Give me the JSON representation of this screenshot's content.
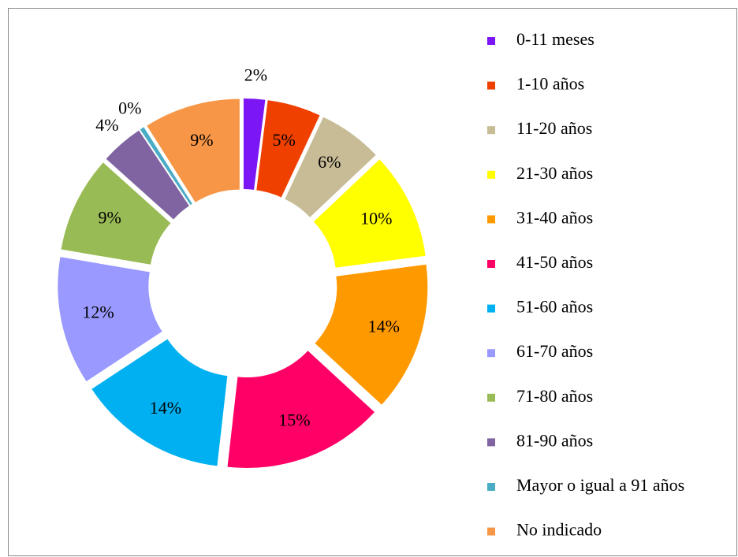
{
  "chart_data": {
    "type": "donut",
    "categories": [
      "0-11 meses",
      "1-10 años",
      "11-20 años",
      "21-30 años",
      "31-40 años",
      "41-50 años",
      "51-60 años",
      "61-70 años",
      "71-80 años",
      "81-90 años",
      "Mayor o igual a 91 años",
      "No indicado"
    ],
    "values": [
      2,
      5,
      6,
      10,
      14,
      15,
      14,
      12,
      9,
      4,
      0.4,
      9
    ],
    "value_labels": [
      "2%",
      "5%",
      "6%",
      "10%",
      "14%",
      "15%",
      "14%",
      "12%",
      "9%",
      "4%",
      "0%",
      "9%"
    ],
    "colors": [
      "#7b16f5",
      "#f04000",
      "#c8bc96",
      "#ffff00",
      "#ff9900",
      "#ff0066",
      "#00b0f0",
      "#9999ff",
      "#99bb55",
      "#8064a2",
      "#4bacc6",
      "#f79646"
    ],
    "legend": "right"
  }
}
